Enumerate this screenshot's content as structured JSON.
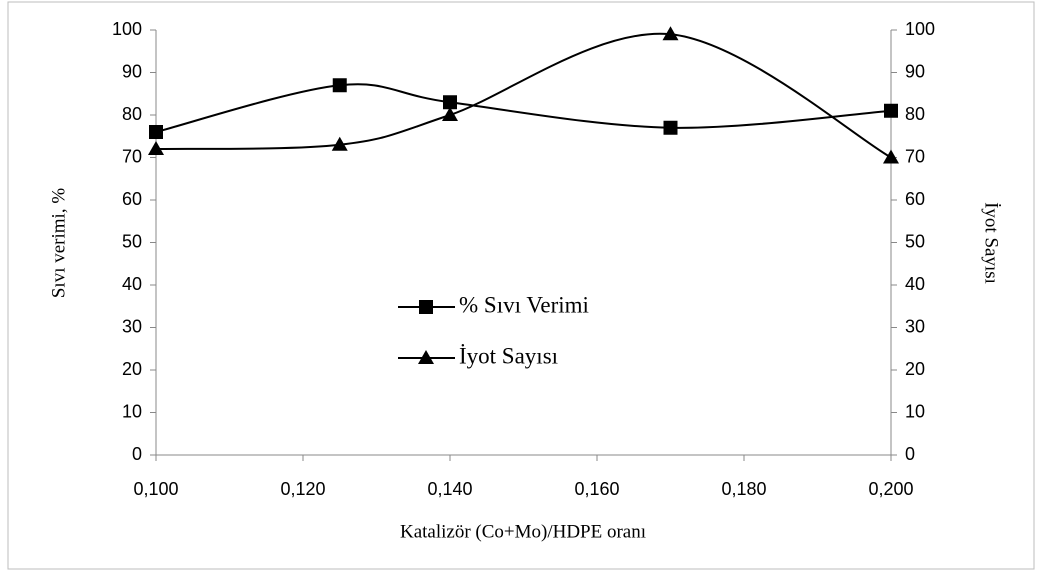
{
  "chart_data": {
    "type": "line",
    "x": [
      0.1,
      0.125,
      0.14,
      0.17,
      0.2
    ],
    "xlim": [
      0.1,
      0.2
    ],
    "xticks": [
      {
        "value": 0.1,
        "label": "0,100"
      },
      {
        "value": 0.12,
        "label": "0,120"
      },
      {
        "value": 0.14,
        "label": "0,140"
      },
      {
        "value": 0.16,
        "label": "0,160"
      },
      {
        "value": 0.18,
        "label": "0,180"
      },
      {
        "value": 0.2,
        "label": "0,200"
      }
    ],
    "ylim": [
      0,
      100
    ],
    "yticks": [
      0,
      10,
      20,
      30,
      40,
      50,
      60,
      70,
      80,
      90,
      100
    ],
    "y2lim": [
      0,
      100
    ],
    "y2ticks": [
      0,
      10,
      20,
      30,
      40,
      50,
      60,
      70,
      80,
      90,
      100
    ],
    "xlabel": "Katalizör (Co+Mo)/HDPE oranı",
    "ylabel": "Sıvı verimi, %",
    "y2label": "İyot Sayısı",
    "series": [
      {
        "name": "% Sıvı Verimi",
        "color": "#000000",
        "marker": "square",
        "values": [
          76,
          87,
          83,
          77,
          81
        ]
      },
      {
        "name": "İyot Sayısı",
        "color": "#000000",
        "marker": "triangle",
        "axis": "y2",
        "values": [
          72,
          73,
          80,
          99,
          70
        ]
      }
    ]
  }
}
